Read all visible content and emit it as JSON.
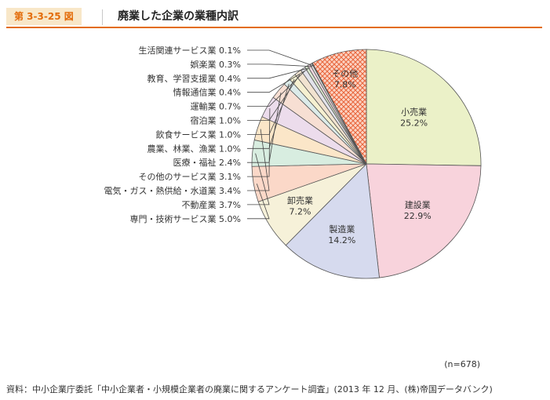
{
  "figure_label": "第 3-3-25 図",
  "figure_title": "廃業した企業の業種内訳",
  "sample_size": "(n=678)",
  "source": "資料：中小企業庁委託「中小企業者・小規模企業者の廃業に関するアンケート調査」(2013 年 12 月、(株)帝国データバンク)",
  "chart_data": {
    "type": "pie",
    "title": "廃業した企業の業種内訳",
    "unit": "%",
    "direction": "clockwise from 12 o'clock",
    "slices": [
      {
        "name": "小売業",
        "value": 25.2,
        "label": "25.2%",
        "color": "#ebf1c8",
        "pattern": "none"
      },
      {
        "name": "建設業",
        "value": 22.9,
        "label": "22.9%",
        "color": "#f8d3dc",
        "pattern": "none"
      },
      {
        "name": "製造業",
        "value": 14.2,
        "label": "14.2%",
        "color": "#d6daee",
        "pattern": "none"
      },
      {
        "name": "卸売業",
        "value": 7.2,
        "label": "7.2%",
        "color": "#f6f1d9",
        "pattern": "none"
      },
      {
        "name": "専門・技術サービス業",
        "value": 5.0,
        "label": "5.0%",
        "color": "#fbd8c8",
        "pattern": "none"
      },
      {
        "name": "不動産業",
        "value": 3.7,
        "label": "3.7%",
        "color": "#d8ede0",
        "pattern": "none"
      },
      {
        "name": "電気・ガス・熱供給・水道業",
        "value": 3.4,
        "label": "3.4%",
        "color": "#fbe6c8",
        "pattern": "none"
      },
      {
        "name": "その他のサービス業",
        "value": 3.1,
        "label": "3.1%",
        "color": "#ecdcec",
        "pattern": "none"
      },
      {
        "name": "医療・福祉",
        "value": 2.4,
        "label": "2.4%",
        "color": "#f7dfd3",
        "pattern": "none"
      },
      {
        "name": "農業、林業、漁業",
        "value": 1.0,
        "label": "1.0%",
        "color": "#dcebe9",
        "pattern": "none"
      },
      {
        "name": "飲食サービス業",
        "value": 1.0,
        "label": "1.0%",
        "color": "#f5f0d0",
        "pattern": "none"
      },
      {
        "name": "宿泊業",
        "value": 1.0,
        "label": "1.0%",
        "color": "#f1e3d0",
        "pattern": "none"
      },
      {
        "name": "運輸業",
        "value": 0.7,
        "label": "0.7%",
        "color": "#e2e2ea",
        "pattern": "none"
      },
      {
        "name": "情報通信業",
        "value": 0.4,
        "label": "0.4%",
        "color": "#dbe8d0",
        "pattern": "none"
      },
      {
        "name": "教育、学習支援業",
        "value": 0.4,
        "label": "0.4%",
        "color": "#f0d8e0",
        "pattern": "none"
      },
      {
        "name": "娯楽業",
        "value": 0.3,
        "label": "0.3%",
        "color": "#e0e0e0",
        "pattern": "none"
      },
      {
        "name": "生活関連サービス業",
        "value": 0.1,
        "label": "0.1%",
        "color": "#d8d8d8",
        "pattern": "none"
      },
      {
        "name": "その他",
        "value": 7.8,
        "label": "7.8%",
        "color": "#fbd3c3",
        "pattern": "crosshatch-orange"
      }
    ],
    "inside_labels": [
      "小売業",
      "建設業",
      "製造業",
      "卸売業",
      "その他"
    ],
    "outside_label_order": [
      "生活関連サービス業",
      "娯楽業",
      "教育、学習支援業",
      "情報通信業",
      "運輸業",
      "宿泊業",
      "飲食サービス業",
      "農業、林業、漁業",
      "医療・福祉",
      "その他のサービス業",
      "電気・ガス・熱供給・水道業",
      "不動産業",
      "専門・技術サービス業"
    ]
  }
}
